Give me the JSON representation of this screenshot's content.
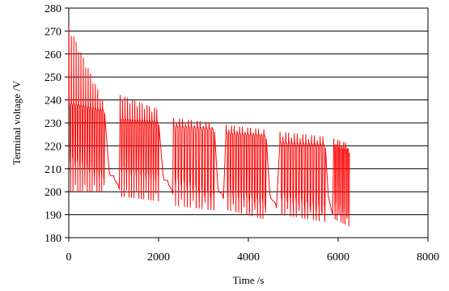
{
  "chart_data": {
    "type": "line",
    "title": "",
    "xlabel": "Time /s",
    "ylabel": "Terminal voltage /V",
    "xlim": [
      0,
      8000
    ],
    "ylim": [
      180,
      280
    ],
    "x_ticks": [
      0,
      2000,
      4000,
      6000,
      8000
    ],
    "y_ticks": [
      180,
      190,
      200,
      210,
      220,
      230,
      240,
      250,
      260,
      270,
      280
    ],
    "grid": "horizontal major gridlines",
    "legend": "none",
    "series": [
      {
        "color": "#ff0000",
        "segments": [
          {
            "x_start": 0,
            "x_end": 800,
            "n_pulses": 15,
            "rest_start": 238,
            "rest_end": 235,
            "peak_start": 272,
            "peak_end": 240,
            "trough_start": 214,
            "trough_end": 207,
            "low_start": 200,
            "low_end": 200
          },
          {
            "x_start": 1140,
            "x_end": 2010,
            "n_pulses": 16,
            "rest_start": 231,
            "rest_end": 230,
            "peak_start": 242,
            "peak_end": 236,
            "trough_start": 210,
            "trough_end": 206,
            "low_start": 198,
            "low_end": 196
          },
          {
            "x_start": 2330,
            "x_end": 3250,
            "n_pulses": 14,
            "rest_start": 228,
            "rest_end": 227,
            "peak_start": 232,
            "peak_end": 230,
            "trough_start": 205,
            "trough_end": 198,
            "low_start": 194,
            "low_end": 192
          },
          {
            "x_start": 3500,
            "x_end": 4400,
            "n_pulses": 15,
            "rest_start": 225,
            "rest_end": 224,
            "peak_start": 229,
            "peak_end": 227,
            "trough_start": 200,
            "trough_end": 195,
            "low_start": 192,
            "low_end": 188
          },
          {
            "x_start": 4700,
            "x_end": 5720,
            "n_pulses": 16,
            "rest_start": 221,
            "rest_end": 220,
            "peak_start": 226,
            "peak_end": 224,
            "trough_start": 198,
            "trough_end": 192,
            "low_start": 190,
            "low_end": 187
          },
          {
            "x_start": 5900,
            "x_end": 6250,
            "n_pulses": 8,
            "rest_start": 219,
            "rest_end": 218,
            "peak_start": 223,
            "peak_end": 221,
            "trough_start": 195,
            "trough_end": 190,
            "low_start": 188,
            "low_end": 185
          }
        ],
        "transitions": [
          {
            "x": 900,
            "y": 207
          },
          {
            "x": 1000,
            "y": 205
          },
          {
            "x": 1100,
            "y": 201
          },
          {
            "x": 2100,
            "y": 205
          },
          {
            "x": 2200,
            "y": 203
          },
          {
            "x": 2290,
            "y": 199
          },
          {
            "x": 3320,
            "y": 200
          },
          {
            "x": 3420,
            "y": 197
          },
          {
            "x": 4480,
            "y": 197
          },
          {
            "x": 4600,
            "y": 193
          },
          {
            "x": 5780,
            "y": 196
          },
          {
            "x": 5850,
            "y": 190
          }
        ]
      }
    ]
  }
}
